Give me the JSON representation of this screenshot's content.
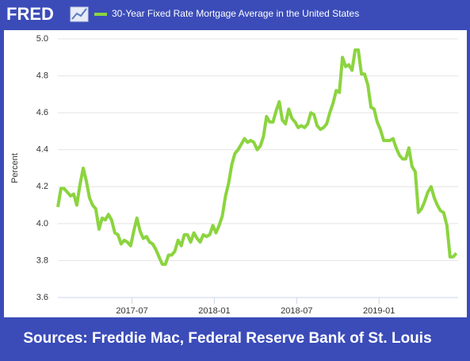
{
  "chart_data": {
    "type": "line",
    "logo": "FRED",
    "ylabel": "Percent",
    "source": "Sources: Freddie Mac, Federal Reserve Bank of St. Louis",
    "xlim": [
      2017.05,
      2019.48
    ],
    "xticks": [
      {
        "value": 2017.5,
        "label": "2017-07"
      },
      {
        "value": 2018.0,
        "label": "2018-01"
      },
      {
        "value": 2018.5,
        "label": "2018-07"
      },
      {
        "value": 2019.0,
        "label": "2019-01"
      }
    ],
    "ylim": [
      3.6,
      5.0
    ],
    "yticks": [
      3.6,
      3.8,
      {
        "value": 4.0,
        "label": "4.0"
      },
      4.2,
      4.4,
      4.6,
      4.8,
      {
        "value": 5.0,
        "label": "5.0"
      }
    ],
    "grid": true,
    "x": [
      2017.05,
      2017.069,
      2017.088,
      2017.108,
      2017.127,
      2017.146,
      2017.165,
      2017.184,
      2017.204,
      2017.223,
      2017.242,
      2017.261,
      2017.28,
      2017.3,
      2017.319,
      2017.338,
      2017.357,
      2017.376,
      2017.396,
      2017.415,
      2017.434,
      2017.453,
      2017.472,
      2017.492,
      2017.511,
      2017.53,
      2017.549,
      2017.568,
      2017.588,
      2017.607,
      2017.626,
      2017.645,
      2017.664,
      2017.684,
      2017.703,
      2017.722,
      2017.741,
      2017.76,
      2017.78,
      2017.799,
      2017.818,
      2017.837,
      2017.856,
      2017.876,
      2017.895,
      2017.914,
      2017.933,
      2017.952,
      2017.972,
      2017.991,
      2018.01,
      2018.029,
      2018.048,
      2018.068,
      2018.087,
      2018.106,
      2018.125,
      2018.144,
      2018.164,
      2018.183,
      2018.202,
      2018.221,
      2018.24,
      2018.26,
      2018.279,
      2018.298,
      2018.317,
      2018.336,
      2018.356,
      2018.375,
      2018.394,
      2018.413,
      2018.432,
      2018.452,
      2018.471,
      2018.49,
      2018.509,
      2018.528,
      2018.548,
      2018.567,
      2018.586,
      2018.605,
      2018.624,
      2018.644,
      2018.663,
      2018.682,
      2018.701,
      2018.72,
      2018.74,
      2018.759,
      2018.778,
      2018.797,
      2018.816,
      2018.836,
      2018.855,
      2018.874,
      2018.893,
      2018.912,
      2018.932,
      2018.951,
      2018.97,
      2018.989,
      2019.008,
      2019.028,
      2019.047,
      2019.066,
      2019.085,
      2019.104,
      2019.124,
      2019.143,
      2019.162,
      2019.181,
      2019.2,
      2019.22,
      2019.239,
      2019.258,
      2019.277,
      2019.296,
      2019.316,
      2019.335,
      2019.354,
      2019.373,
      2019.392,
      2019.412,
      2019.431,
      2019.45,
      2019.469
    ],
    "series": [
      {
        "name": "30-Year Fixed Rate Mortgage Average in the United States",
        "color": "#8bd43f",
        "values": [
          4.09,
          4.19,
          4.19,
          4.17,
          4.15,
          4.16,
          4.1,
          4.21,
          4.3,
          4.23,
          4.14,
          4.1,
          4.08,
          3.97,
          4.03,
          4.02,
          4.05,
          4.02,
          3.95,
          3.94,
          3.89,
          3.91,
          3.9,
          3.88,
          3.96,
          4.03,
          3.96,
          3.92,
          3.93,
          3.9,
          3.89,
          3.86,
          3.82,
          3.78,
          3.78,
          3.83,
          3.83,
          3.85,
          3.91,
          3.88,
          3.94,
          3.94,
          3.9,
          3.95,
          3.92,
          3.9,
          3.94,
          3.93,
          3.94,
          3.99,
          3.95,
          3.99,
          4.04,
          4.15,
          4.22,
          4.32,
          4.38,
          4.4,
          4.43,
          4.46,
          4.44,
          4.45,
          4.44,
          4.4,
          4.42,
          4.47,
          4.58,
          4.55,
          4.55,
          4.61,
          4.66,
          4.56,
          4.54,
          4.62,
          4.57,
          4.55,
          4.52,
          4.53,
          4.52,
          4.54,
          4.6,
          4.59,
          4.53,
          4.51,
          4.52,
          4.54,
          4.6,
          4.65,
          4.72,
          4.71,
          4.9,
          4.85,
          4.86,
          4.83,
          4.94,
          4.94,
          4.81,
          4.81,
          4.75,
          4.63,
          4.62,
          4.55,
          4.51,
          4.45,
          4.45,
          4.45,
          4.46,
          4.41,
          4.37,
          4.35,
          4.35,
          4.41,
          4.31,
          4.28,
          4.06,
          4.08,
          4.12,
          4.17,
          4.2,
          4.14,
          4.1,
          4.07,
          4.06,
          3.99,
          3.82,
          3.82,
          3.84
        ]
      }
    ]
  }
}
